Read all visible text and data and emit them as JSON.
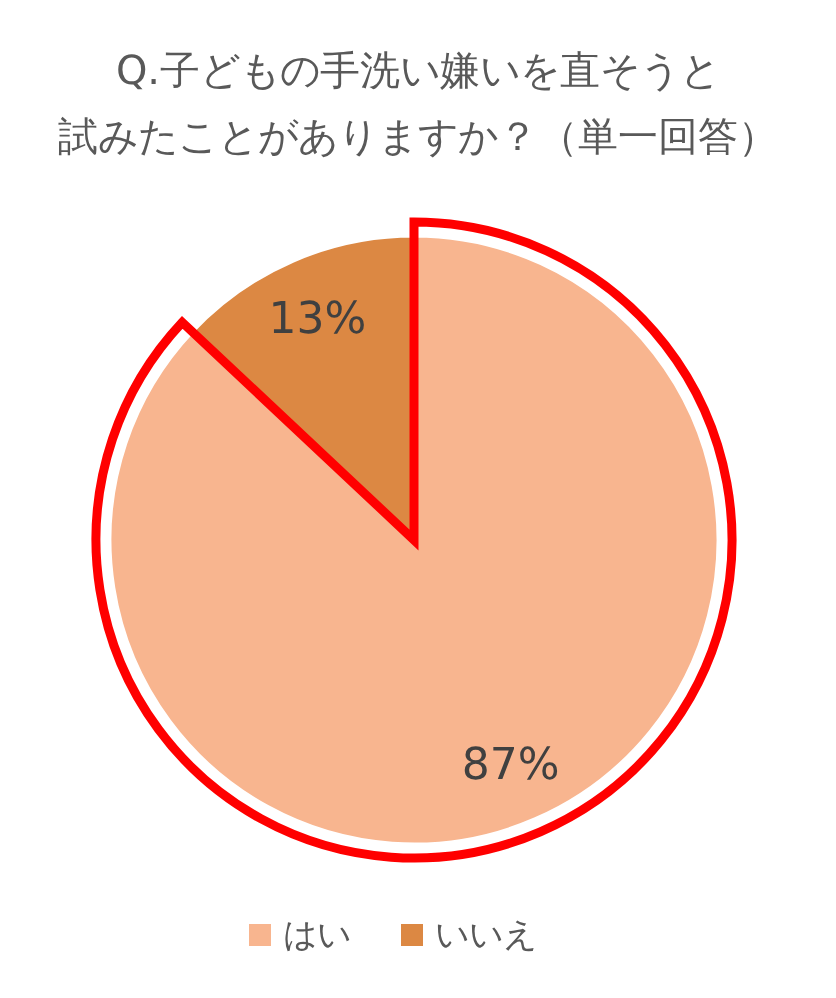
{
  "chart_data": {
    "type": "pie",
    "title": "Q.子どもの手洗い嫌いを直そうと",
    "subtitle": "試みたことがありますか？（単一回答）",
    "categories": [
      "はい",
      "いいえ"
    ],
    "values": [
      87,
      13
    ],
    "colors": [
      "#f8b58f",
      "#dc8843"
    ],
    "value_labels": [
      "87%",
      "13%"
    ],
    "legend": "bottom"
  }
}
